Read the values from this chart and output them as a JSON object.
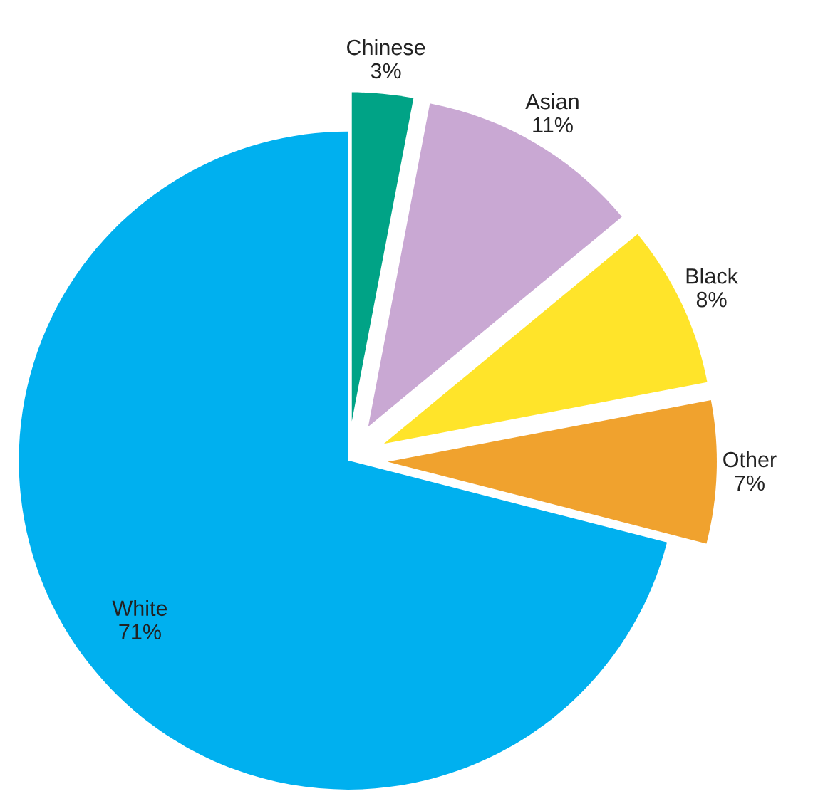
{
  "chart_data": {
    "type": "pie",
    "categories": [
      "Chinese",
      "Asian",
      "Black",
      "Other",
      "White"
    ],
    "values": [
      3,
      11,
      8,
      7,
      71
    ],
    "value_labels": [
      "3%",
      "11%",
      "8%",
      "7%",
      "71%"
    ],
    "colors": [
      "#00a386",
      "#c9a8d3",
      "#ffe42a",
      "#f0a22e",
      "#00b0ef"
    ]
  }
}
